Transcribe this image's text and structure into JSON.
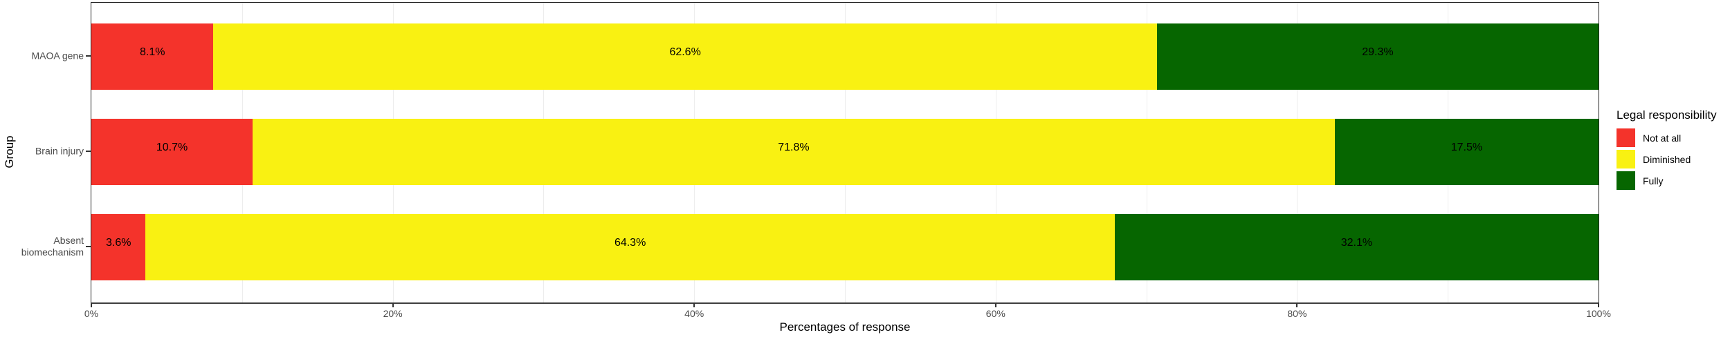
{
  "chart_data": {
    "type": "bar",
    "orientation": "horizontal",
    "stacked": true,
    "title": "",
    "xlabel": "Percentages of response",
    "ylabel": "Group",
    "xlim": [
      0,
      100
    ],
    "grid": "vertical lines every 10%",
    "legend_position": "right",
    "legend": {
      "title": "Legal responsibility"
    },
    "categories": [
      "MAOA gene",
      "Brain injury",
      "Absent\nbiomechanism"
    ],
    "series": [
      {
        "name": "Not at all",
        "color": "#f4332b",
        "values": [
          8.1,
          10.7,
          3.6
        ]
      },
      {
        "name": "Diminished",
        "color": "#f9f112",
        "values": [
          62.6,
          71.8,
          64.3
        ]
      },
      {
        "name": "Fully",
        "color": "#066600",
        "values": [
          29.3,
          17.5,
          32.1
        ]
      }
    ],
    "bar_labels": [
      [
        "8.1%",
        "62.6%",
        "29.3%"
      ],
      [
        "10.7%",
        "71.8%",
        "17.5%"
      ],
      [
        "3.6%",
        "64.3%",
        "32.1%"
      ]
    ],
    "x_ticks": [
      {
        "value": 0,
        "label": "0%"
      },
      {
        "value": 20,
        "label": "20%"
      },
      {
        "value": 40,
        "label": "40%"
      },
      {
        "value": 60,
        "label": "60%"
      },
      {
        "value": 80,
        "label": "80%"
      },
      {
        "value": 100,
        "label": "100%"
      }
    ],
    "style_colors": {
      "gridline": "#ededed",
      "panel_border": "#1f1f1f",
      "axis_text": "#4a4a4a",
      "label_text": "#000000"
    }
  }
}
